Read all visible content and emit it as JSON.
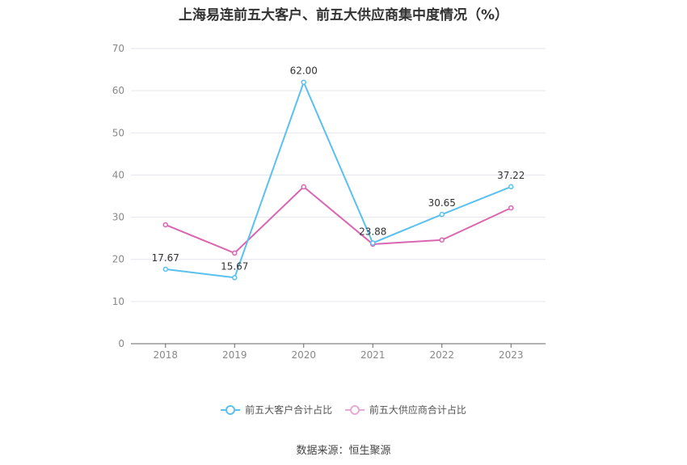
{
  "chart_data": {
    "type": "line",
    "title": "上海易连前五大客户、前五大供应商集中度情况（%）",
    "categories": [
      "2018",
      "2019",
      "2020",
      "2021",
      "2022",
      "2023"
    ],
    "ylim": [
      0,
      70
    ],
    "yticks": [
      0,
      10,
      20,
      30,
      40,
      50,
      60,
      70
    ],
    "grid": true,
    "legend_position": "bottom",
    "series": [
      {
        "name": "前五大客户合计占比",
        "color": "#5bc0f0",
        "values": [
          17.67,
          15.67,
          62.0,
          23.88,
          30.65,
          37.22
        ],
        "labels": [
          "17.67",
          "15.67",
          "62.00",
          "23.88",
          "30.65",
          "37.22"
        ]
      },
      {
        "name": "前五大供应商合计占比",
        "color": "#d966b0",
        "values": [
          28.2,
          21.5,
          37.2,
          23.6,
          24.6,
          32.2
        ]
      }
    ]
  },
  "source": "数据来源：恒生聚源"
}
